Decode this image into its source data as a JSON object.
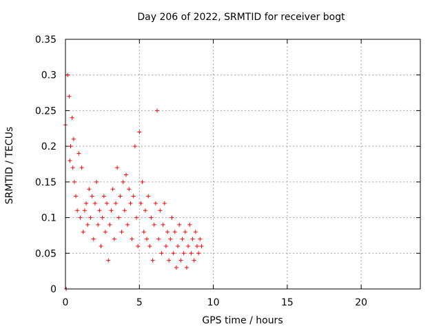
{
  "chart_data": {
    "type": "scatter",
    "title": "Day 206 of 2022, SRMTID for receiver bogt",
    "xlabel": "GPS time / hours",
    "ylabel": "SRMTID / TECUs",
    "xlim": [
      0,
      24
    ],
    "ylim": [
      0,
      0.35
    ],
    "xticks": [
      0,
      5,
      10,
      15,
      20
    ],
    "xtick_labels": [
      "0",
      "5",
      "10",
      "15",
      "20"
    ],
    "yticks": [
      0,
      0.05,
      0.1,
      0.15,
      0.2,
      0.25,
      0.3,
      0.35
    ],
    "ytick_labels": [
      "0",
      "0.05",
      "0.1",
      "0.15",
      "0.2",
      "0.25",
      "0.3",
      "0.35"
    ],
    "grid": true,
    "marker": "+",
    "series": [
      {
        "name": "SRMTID",
        "color": "#ff0000",
        "x": [
          0.0,
          0.05,
          0.15,
          0.25,
          0.3,
          0.35,
          0.45,
          0.5,
          0.55,
          0.6,
          0.7,
          0.8,
          0.9,
          1.0,
          1.1,
          1.2,
          1.3,
          1.4,
          1.5,
          1.6,
          1.7,
          1.8,
          1.9,
          2.0,
          2.1,
          2.2,
          2.3,
          2.4,
          2.5,
          2.6,
          2.7,
          2.8,
          2.9,
          3.0,
          3.1,
          3.2,
          3.3,
          3.4,
          3.5,
          3.6,
          3.7,
          3.8,
          3.9,
          4.0,
          4.1,
          4.2,
          4.3,
          4.4,
          4.5,
          4.6,
          4.7,
          4.8,
          4.9,
          5.0,
          5.1,
          5.2,
          5.3,
          5.4,
          5.5,
          5.6,
          5.7,
          5.8,
          5.9,
          6.0,
          6.1,
          6.2,
          6.3,
          6.4,
          6.5,
          6.6,
          6.7,
          6.8,
          6.9,
          7.0,
          7.1,
          7.2,
          7.3,
          7.4,
          7.5,
          7.6,
          7.7,
          7.8,
          7.9,
          8.0,
          8.1,
          8.2,
          8.3,
          8.4,
          8.5,
          8.6,
          8.7,
          8.8,
          8.9,
          9.0,
          9.1,
          9.2
        ],
        "y": [
          0.23,
          0.0,
          0.3,
          0.27,
          0.18,
          0.2,
          0.24,
          0.17,
          0.21,
          0.15,
          0.13,
          0.11,
          0.19,
          0.1,
          0.17,
          0.08,
          0.11,
          0.12,
          0.09,
          0.14,
          0.1,
          0.13,
          0.07,
          0.12,
          0.15,
          0.09,
          0.11,
          0.06,
          0.1,
          0.13,
          0.08,
          0.12,
          0.04,
          0.09,
          0.11,
          0.14,
          0.07,
          0.12,
          0.17,
          0.1,
          0.13,
          0.08,
          0.15,
          0.11,
          0.16,
          0.09,
          0.14,
          0.12,
          0.07,
          0.13,
          0.2,
          0.1,
          0.06,
          0.22,
          0.12,
          0.15,
          0.08,
          0.11,
          0.07,
          0.13,
          0.06,
          0.1,
          0.04,
          0.09,
          0.12,
          0.25,
          0.07,
          0.11,
          0.05,
          0.09,
          0.12,
          0.06,
          0.08,
          0.04,
          0.07,
          0.1,
          0.05,
          0.08,
          0.03,
          0.06,
          0.09,
          0.04,
          0.07,
          0.05,
          0.08,
          0.03,
          0.06,
          0.09,
          0.05,
          0.07,
          0.04,
          0.08,
          0.06,
          0.05,
          0.07,
          0.06
        ]
      }
    ]
  }
}
